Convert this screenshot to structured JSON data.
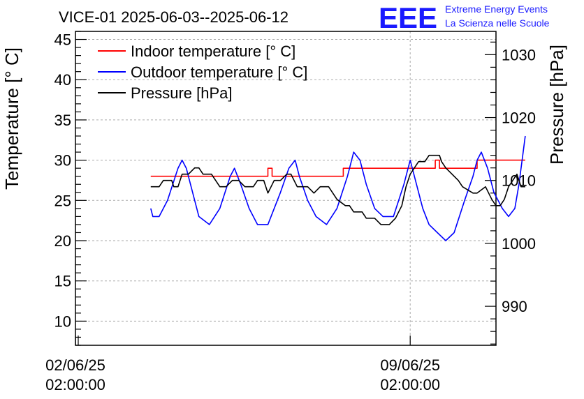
{
  "chart_data": {
    "type": "line",
    "title": "VICE-01 2025-06-03--2025-06-12",
    "logo": {
      "mark": "EEE",
      "line1": "Extreme Energy Events",
      "line2": "La Scienza nelle Scuole",
      "color": "#1a1aff"
    },
    "x_axis": {
      "range_days": [
        0,
        10.05
      ],
      "tick_labels": [
        {
          "day": 1.0,
          "date": "02/06/25",
          "time": "02:00:00"
        },
        {
          "day": 8.0,
          "date": "09/06/25",
          "time": "02:00:00"
        }
      ],
      "gridlines_days": [
        8.0
      ]
    },
    "y_left": {
      "label": "Temperature [° C]",
      "range": [
        7,
        46
      ],
      "ticks": [
        10,
        15,
        20,
        25,
        30,
        35,
        40,
        45
      ],
      "minor_step": 1
    },
    "y_right": {
      "label": "Pressure [hPa]",
      "range": [
        983.8,
        1033.7
      ],
      "ticks": [
        990,
        1000,
        1010,
        1020,
        1030
      ],
      "minor_step": 2
    },
    "grid": true,
    "legend_placement": "top-left",
    "series": [
      {
        "name": "Indoor temperature [° C]",
        "axis": "left",
        "color": "#ff0000",
        "points": [
          [
            1.8,
            28
          ],
          [
            4.6,
            28
          ],
          [
            4.6,
            29
          ],
          [
            4.7,
            29
          ],
          [
            4.7,
            28
          ],
          [
            6.4,
            28
          ],
          [
            6.4,
            29
          ],
          [
            8.6,
            29
          ],
          [
            8.6,
            30
          ],
          [
            8.7,
            30
          ],
          [
            8.7,
            29
          ],
          [
            9.6,
            29
          ],
          [
            9.6,
            30
          ],
          [
            10.75,
            30
          ]
        ]
      },
      {
        "name": "Outdoor temperature [° C]",
        "axis": "left",
        "color": "#0000ff",
        "points": [
          [
            1.8,
            24
          ],
          [
            1.85,
            23
          ],
          [
            2.0,
            23
          ],
          [
            2.2,
            25
          ],
          [
            2.45,
            29
          ],
          [
            2.55,
            30
          ],
          [
            2.65,
            29
          ],
          [
            2.8,
            26
          ],
          [
            2.95,
            23
          ],
          [
            3.2,
            22
          ],
          [
            3.45,
            24
          ],
          [
            3.7,
            28
          ],
          [
            3.8,
            29
          ],
          [
            3.95,
            27
          ],
          [
            4.15,
            24
          ],
          [
            4.35,
            22
          ],
          [
            4.6,
            22
          ],
          [
            4.9,
            26
          ],
          [
            5.1,
            29
          ],
          [
            5.25,
            30
          ],
          [
            5.35,
            28
          ],
          [
            5.55,
            25
          ],
          [
            5.75,
            23
          ],
          [
            6.0,
            22
          ],
          [
            6.25,
            24
          ],
          [
            6.5,
            28
          ],
          [
            6.65,
            31
          ],
          [
            6.8,
            30
          ],
          [
            6.95,
            27
          ],
          [
            7.15,
            24
          ],
          [
            7.35,
            23
          ],
          [
            7.6,
            23
          ],
          [
            7.85,
            27
          ],
          [
            8.0,
            30
          ],
          [
            8.1,
            28
          ],
          [
            8.3,
            24
          ],
          [
            8.45,
            22
          ],
          [
            8.65,
            21
          ],
          [
            8.85,
            20
          ],
          [
            9.05,
            21
          ],
          [
            9.3,
            25
          ],
          [
            9.5,
            28
          ],
          [
            9.6,
            30
          ],
          [
            9.7,
            31
          ],
          [
            9.85,
            29
          ],
          [
            10.0,
            26
          ],
          [
            10.2,
            24
          ],
          [
            10.35,
            23
          ],
          [
            10.5,
            24
          ],
          [
            10.6,
            27
          ],
          [
            10.7,
            31
          ],
          [
            10.75,
            33
          ]
        ]
      },
      {
        "name": "Pressure [hPa]",
        "axis": "right",
        "color": "#000000",
        "points": [
          [
            1.8,
            1009
          ],
          [
            2.0,
            1009
          ],
          [
            2.1,
            1010
          ],
          [
            2.3,
            1010
          ],
          [
            2.35,
            1009
          ],
          [
            2.45,
            1009
          ],
          [
            2.55,
            1011
          ],
          [
            2.7,
            1011
          ],
          [
            2.85,
            1012
          ],
          [
            2.95,
            1012
          ],
          [
            3.05,
            1011
          ],
          [
            3.25,
            1011
          ],
          [
            3.35,
            1010
          ],
          [
            3.45,
            1009
          ],
          [
            3.6,
            1009
          ],
          [
            3.75,
            1010
          ],
          [
            3.9,
            1010
          ],
          [
            4.05,
            1009
          ],
          [
            4.25,
            1009
          ],
          [
            4.35,
            1010
          ],
          [
            4.5,
            1010
          ],
          [
            4.6,
            1008
          ],
          [
            4.75,
            1010
          ],
          [
            4.9,
            1010
          ],
          [
            5.05,
            1011
          ],
          [
            5.15,
            1011
          ],
          [
            5.3,
            1009
          ],
          [
            5.55,
            1009
          ],
          [
            5.7,
            1008
          ],
          [
            5.85,
            1009
          ],
          [
            6.05,
            1009
          ],
          [
            6.25,
            1007
          ],
          [
            6.45,
            1006
          ],
          [
            6.55,
            1006
          ],
          [
            6.65,
            1005
          ],
          [
            6.85,
            1005
          ],
          [
            6.95,
            1004
          ],
          [
            7.15,
            1004
          ],
          [
            7.3,
            1003
          ],
          [
            7.5,
            1003
          ],
          [
            7.65,
            1004
          ],
          [
            7.8,
            1006
          ],
          [
            7.9,
            1009
          ],
          [
            8.0,
            1011
          ],
          [
            8.1,
            1012
          ],
          [
            8.2,
            1013
          ],
          [
            8.35,
            1013
          ],
          [
            8.45,
            1014
          ],
          [
            8.7,
            1014
          ],
          [
            8.75,
            1013
          ],
          [
            8.85,
            1012
          ],
          [
            9.0,
            1011
          ],
          [
            9.15,
            1010
          ],
          [
            9.25,
            1009
          ],
          [
            9.5,
            1008
          ],
          [
            9.6,
            1008
          ],
          [
            9.8,
            1009
          ],
          [
            9.95,
            1007
          ],
          [
            10.05,
            1006
          ],
          [
            10.15,
            1006
          ],
          [
            10.25,
            1007
          ],
          [
            10.35,
            1009
          ],
          [
            10.45,
            1010
          ],
          [
            10.55,
            1011
          ],
          [
            10.65,
            1009
          ],
          [
            10.75,
            1009
          ]
        ]
      }
    ]
  }
}
